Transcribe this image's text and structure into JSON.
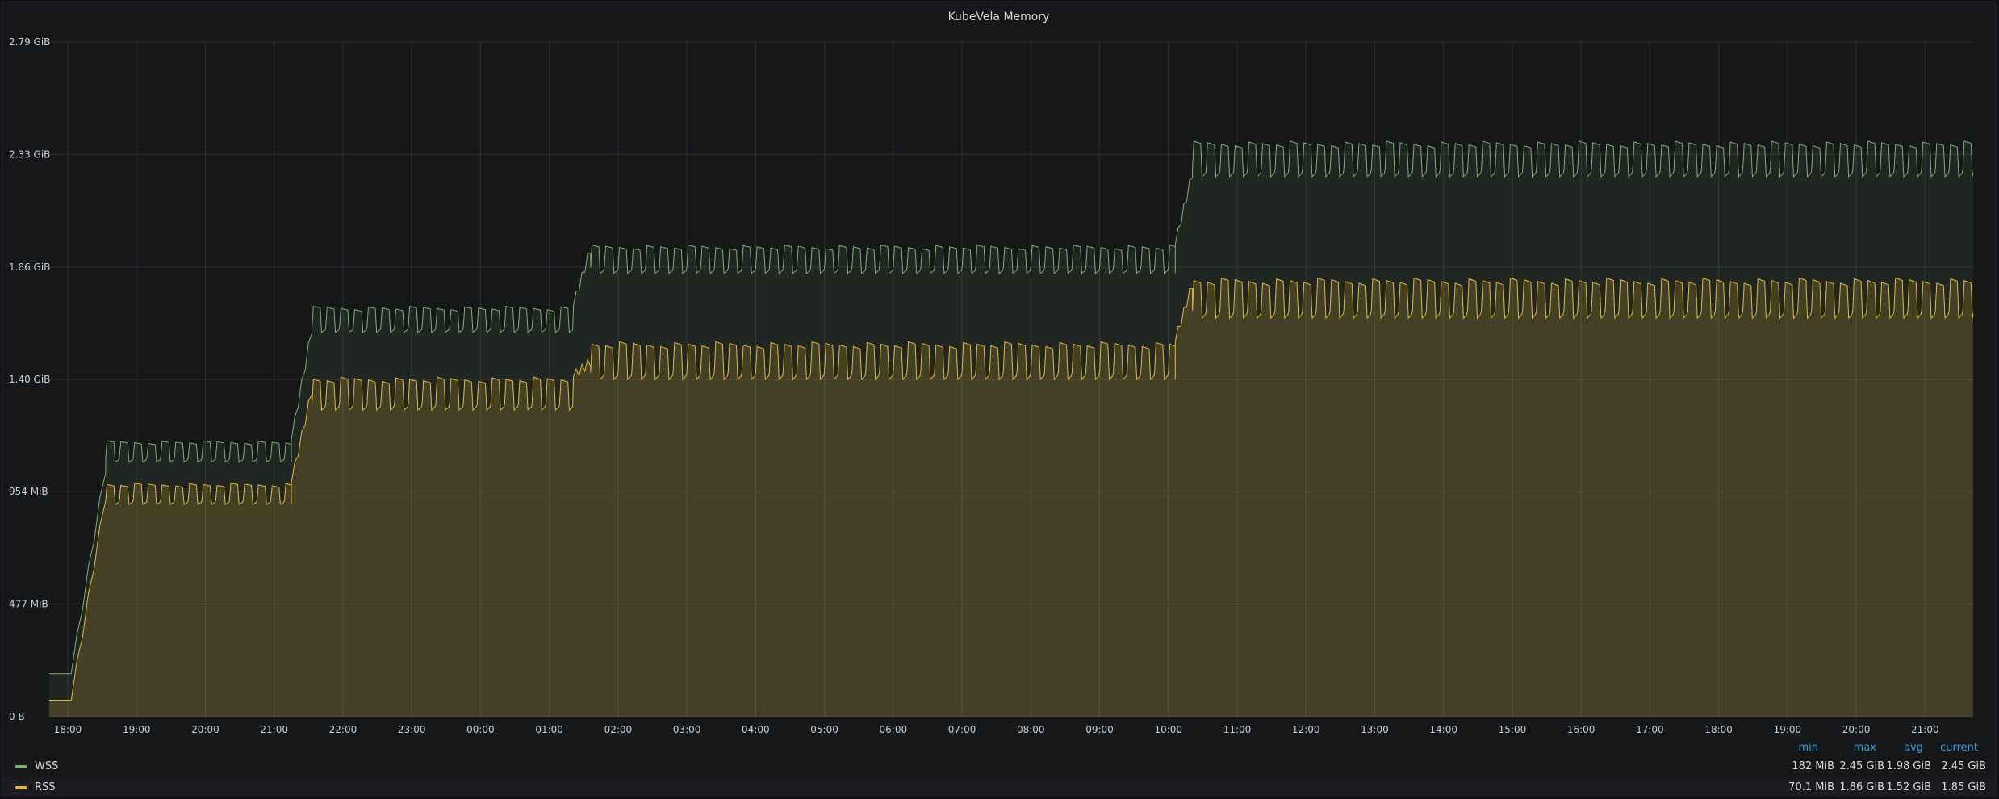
{
  "panel": {
    "title": "KubeVela Memory"
  },
  "chart_data": {
    "type": "area",
    "title": "KubeVela Memory",
    "y_ticks": [
      "0 B",
      "477 MiB",
      "954 MiB",
      "1.40 GiB",
      "1.86 GiB",
      "2.33 GiB",
      "2.79 GiB"
    ],
    "y_tick_values_mib": [
      0,
      477,
      954,
      1430,
      1907,
      2384,
      2861
    ],
    "ylim_mib": [
      0,
      2861
    ],
    "x_ticks": [
      "18:00",
      "19:00",
      "20:00",
      "21:00",
      "22:00",
      "23:00",
      "00:00",
      "01:00",
      "02:00",
      "03:00",
      "04:00",
      "05:00",
      "06:00",
      "07:00",
      "08:00",
      "09:00",
      "10:00",
      "11:00",
      "12:00",
      "13:00",
      "14:00",
      "15:00",
      "16:00",
      "17:00",
      "18:00",
      "19:00",
      "20:00",
      "21:00"
    ],
    "x_range_hours": [
      -0.27,
      27.7
    ],
    "grid": true,
    "legend_placement": "bottom-left",
    "series": [
      {
        "name": "WSS",
        "color": "#7eb26d",
        "stats": {
          "min": "182 MiB",
          "max": "2.45 GiB",
          "avg": "1.98 GiB",
          "current": "2.45 GiB"
        },
        "segments": [
          {
            "start": -0.27,
            "end": 0.05,
            "high": 182,
            "low": 182
          },
          {
            "start": 0.05,
            "end": 0.55,
            "ramp_to": 1050
          },
          {
            "start": 0.55,
            "end": 3.25,
            "high": 1170,
            "low": 1080
          },
          {
            "start": 3.25,
            "end": 3.55,
            "ramp_to": 1640
          },
          {
            "start": 3.55,
            "end": 7.35,
            "high": 1740,
            "low": 1630
          },
          {
            "start": 7.35,
            "end": 7.6,
            "ramp_to": 1980
          },
          {
            "start": 7.6,
            "end": 16.1,
            "high": 2000,
            "low": 1880
          },
          {
            "start": 16.1,
            "end": 16.35,
            "ramp_to": 2300
          },
          {
            "start": 16.35,
            "end": 27.7,
            "high": 2440,
            "low": 2290
          }
        ]
      },
      {
        "name": "RSS",
        "color": "#eab839",
        "stats": {
          "min": "70.1 MiB",
          "max": "1.86 GiB",
          "avg": "1.52 GiB",
          "current": "1.85 GiB"
        },
        "segments": [
          {
            "start": -0.27,
            "end": 0.05,
            "high": 70,
            "low": 70
          },
          {
            "start": 0.05,
            "end": 0.55,
            "ramp_to": 930
          },
          {
            "start": 0.55,
            "end": 3.25,
            "high": 990,
            "low": 900
          },
          {
            "start": 3.25,
            "end": 3.55,
            "ramp_to": 1380
          },
          {
            "start": 3.55,
            "end": 7.35,
            "high": 1440,
            "low": 1300
          },
          {
            "start": 7.35,
            "end": 7.6,
            "ramp_to": 1500
          },
          {
            "start": 7.6,
            "end": 16.1,
            "high": 1590,
            "low": 1430
          },
          {
            "start": 16.1,
            "end": 16.35,
            "ramp_to": 1830
          },
          {
            "start": 16.35,
            "end": 27.7,
            "high": 1860,
            "low": 1690
          }
        ]
      }
    ]
  },
  "legend": {
    "headers": {
      "min": "min",
      "max": "max",
      "avg": "avg",
      "current": "current"
    }
  }
}
